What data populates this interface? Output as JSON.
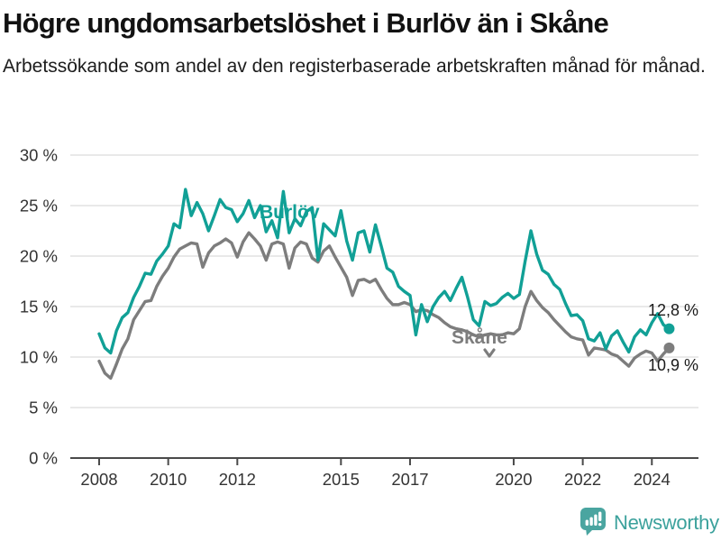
{
  "title": "Högre ungdomsarbetslöshet i Burlöv än i Skåne",
  "subtitle": "Arbetssökande som andel av den registerbaserade arbetskraften månad för månad.",
  "footer": {
    "brand": "Newsworthy"
  },
  "colors": {
    "burlov": "#11a096",
    "skane": "#7d7d7d",
    "grid": "#dcdcdc",
    "axis": "#4a4a4a",
    "tick_text": "#333333",
    "logo": "#4aa5a0"
  },
  "chart_data": {
    "type": "line",
    "title": "Högre ungdomsarbetslöshet i Burlöv än i Skåne",
    "subtitle": "Arbetssökande som andel av den registerbaserade arbetskraften månad för månad.",
    "xlabel": "",
    "ylabel": "",
    "y_tick_suffix": " %",
    "ylim": [
      0,
      30
    ],
    "y_ticks": [
      0,
      5,
      10,
      15,
      20,
      25,
      30
    ],
    "x_ticks": [
      2008,
      2010,
      2012,
      2015,
      2017,
      2020,
      2022,
      2024
    ],
    "grid": true,
    "legend_position": "inline-labels",
    "x_start": 2008.0,
    "x_step": 0.1666667,
    "series": [
      {
        "name": "Skåne",
        "color": "#7d7d7d",
        "end_label": "10,9 %",
        "end_value": 10.9,
        "values": [
          9.6,
          8.4,
          7.9,
          9.3,
          10.8,
          11.8,
          13.7,
          14.6,
          15.5,
          15.6,
          17.0,
          18.0,
          18.8,
          19.9,
          20.7,
          21.0,
          21.3,
          21.2,
          18.9,
          20.3,
          21.0,
          21.3,
          21.7,
          21.3,
          19.9,
          21.4,
          22.3,
          21.7,
          21.0,
          19.6,
          21.2,
          21.4,
          21.2,
          18.8,
          20.8,
          21.4,
          21.2,
          19.8,
          19.4,
          20.5,
          21.0,
          19.9,
          18.9,
          17.9,
          16.1,
          17.6,
          17.7,
          17.4,
          17.7,
          16.7,
          15.8,
          15.2,
          15.2,
          15.4,
          15.2,
          14.5,
          14.7,
          14.6,
          14.2,
          13.9,
          13.4,
          13.0,
          12.8,
          12.7,
          12.5,
          12.2,
          12.0,
          12.2,
          12.3,
          12.2,
          12.2,
          12.4,
          12.3,
          12.8,
          15.0,
          16.5,
          15.6,
          14.9,
          14.4,
          13.7,
          13.1,
          12.5,
          12.0,
          11.8,
          11.7,
          10.2,
          10.9,
          10.8,
          10.7,
          10.3,
          10.1,
          9.6,
          9.1,
          9.9,
          10.3,
          10.6,
          10.4,
          9.6,
          10.3,
          10.9
        ]
      },
      {
        "name": "Burlöv",
        "color": "#11a096",
        "end_label": "12,8 %",
        "end_value": 12.8,
        "values": [
          12.3,
          10.9,
          10.4,
          12.6,
          13.9,
          14.4,
          15.9,
          17.0,
          18.3,
          18.2,
          19.5,
          20.2,
          21.0,
          23.2,
          22.8,
          26.6,
          24.0,
          25.3,
          24.2,
          22.5,
          24.0,
          25.6,
          24.8,
          24.6,
          23.4,
          24.2,
          25.5,
          23.8,
          25.0,
          22.4,
          23.5,
          21.8,
          26.4,
          22.3,
          23.7,
          23.0,
          24.4,
          24.8,
          19.6,
          23.2,
          22.6,
          22.0,
          24.5,
          21.5,
          19.6,
          22.3,
          22.5,
          20.4,
          23.1,
          21.0,
          18.8,
          18.4,
          17.0,
          16.5,
          16.1,
          12.2,
          15.2,
          13.5,
          15.0,
          15.9,
          16.5,
          15.6,
          16.8,
          17.9,
          15.9,
          13.7,
          13.1,
          15.5,
          15.1,
          15.3,
          15.9,
          16.3,
          15.8,
          16.2,
          19.5,
          22.5,
          20.2,
          18.6,
          18.2,
          17.2,
          16.7,
          15.3,
          14.1,
          14.2,
          13.6,
          11.8,
          11.6,
          12.4,
          10.8,
          12.1,
          12.6,
          11.5,
          10.5,
          12.0,
          12.7,
          12.2,
          13.4,
          14.3,
          13.2,
          12.8
        ]
      }
    ]
  }
}
